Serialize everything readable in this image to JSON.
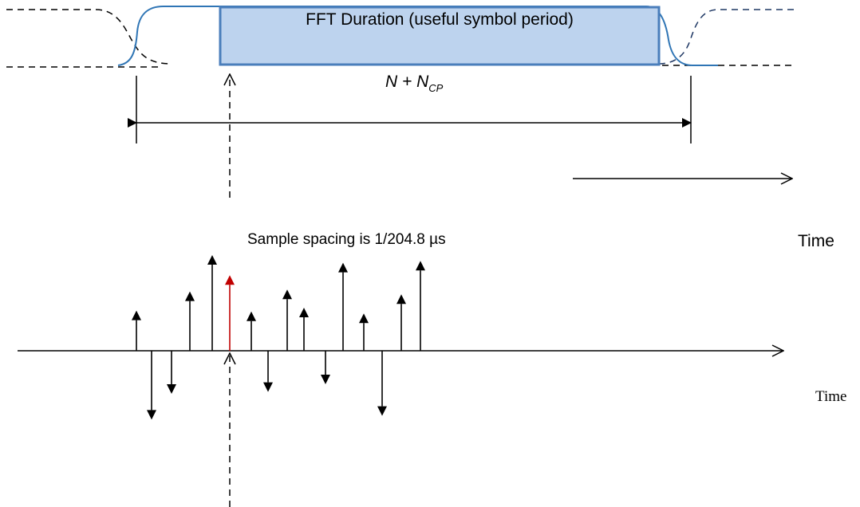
{
  "labels": {
    "fft_duration": "FFT Duration (useful symbol period)",
    "n_main": "N + N",
    "n_sub": "CP",
    "sample_spacing": "Sample spacing is 1/204.8 µs",
    "time_upper": "Time",
    "time_lower": "Time"
  },
  "colors": {
    "window_outline": "#2f75b5",
    "fft_fill": "#bdd3ee",
    "fft_border": "#4a7ebb",
    "dashed": "#000000",
    "sample_arrow": "#000000",
    "highlight_sample": "#c00000"
  },
  "samples": [
    {
      "direction": "up",
      "highlight": false,
      "amplitude": 0.42
    },
    {
      "direction": "down",
      "highlight": false,
      "amplitude": 0.72
    },
    {
      "direction": "down",
      "highlight": false,
      "amplitude": 0.45
    },
    {
      "direction": "up",
      "highlight": false,
      "amplitude": 0.62
    },
    {
      "direction": "up",
      "highlight": false,
      "amplitude": 1.0
    },
    {
      "direction": "up",
      "highlight": true,
      "amplitude": 0.79
    },
    {
      "direction": "up",
      "highlight": false,
      "amplitude": 0.41
    },
    {
      "direction": "down",
      "highlight": false,
      "amplitude": 0.43
    },
    {
      "direction": "up",
      "highlight": false,
      "amplitude": 0.64
    },
    {
      "direction": "up",
      "highlight": false,
      "amplitude": 0.45
    },
    {
      "direction": "down",
      "highlight": false,
      "amplitude": 0.35
    },
    {
      "direction": "up",
      "highlight": false,
      "amplitude": 0.92
    },
    {
      "direction": "up",
      "highlight": false,
      "amplitude": 0.39
    },
    {
      "direction": "down",
      "highlight": false,
      "amplitude": 0.68
    },
    {
      "direction": "up",
      "highlight": false,
      "amplitude": 0.59
    },
    {
      "direction": "up",
      "highlight": false,
      "amplitude": 0.94
    }
  ]
}
